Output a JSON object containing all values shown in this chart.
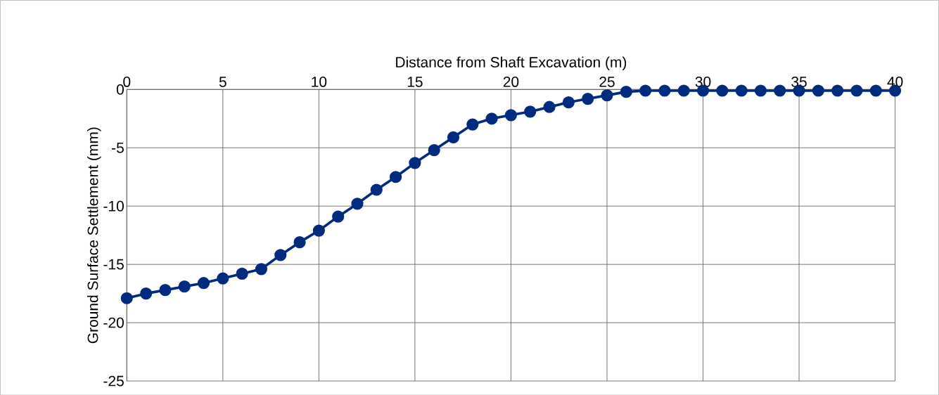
{
  "chart_data": {
    "type": "line",
    "xlabel": "Distance from Shaft Excavation (m)",
    "ylabel": "Ground Surface Settlement (mm)",
    "x": [
      0,
      1,
      2,
      3,
      4,
      5,
      6,
      7,
      8,
      9,
      10,
      11,
      12,
      13,
      14,
      15,
      16,
      17,
      18,
      19,
      20,
      21,
      22,
      23,
      24,
      25,
      26,
      27,
      28,
      29,
      30,
      31,
      32,
      33,
      34,
      35,
      36,
      37,
      38,
      39,
      40
    ],
    "series": [
      {
        "color": "#002b7f",
        "values": [
          -17.9,
          -17.5,
          -17.2,
          -16.9,
          -16.6,
          -16.2,
          -15.8,
          -15.4,
          -14.2,
          -13.1,
          -12.1,
          -10.9,
          -9.8,
          -8.6,
          -7.5,
          -6.3,
          -5.2,
          -4.1,
          -3.0,
          -2.5,
          -2.2,
          -1.9,
          -1.5,
          -1.1,
          -0.8,
          -0.5,
          -0.2,
          -0.1,
          -0.1,
          -0.1,
          -0.1,
          -0.1,
          -0.1,
          -0.1,
          -0.1,
          -0.1,
          -0.1,
          -0.1,
          -0.1,
          -0.1,
          -0.1
        ]
      }
    ],
    "xlim": [
      0,
      40
    ],
    "ylim": [
      -25,
      0
    ],
    "xticks": [
      0,
      5,
      10,
      15,
      20,
      25,
      30,
      35,
      40
    ],
    "yticks": [
      -25,
      -20,
      -15,
      -10,
      -5,
      0
    ],
    "grid": true,
    "marker": "circle",
    "line_style": "solid"
  }
}
